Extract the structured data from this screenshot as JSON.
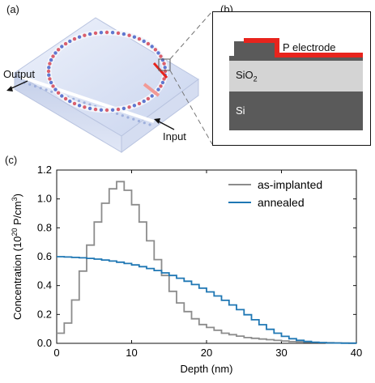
{
  "panels": {
    "a": {
      "label": "(a)",
      "output_label": "Output",
      "input_label": "Input"
    },
    "b": {
      "label": "(b)",
      "electrode_label": "P electrode",
      "oxide_label": "SiO2",
      "oxide_base": "SiO",
      "oxide_sub": "2",
      "substrate_label": "Si"
    },
    "c": {
      "label": "(c)"
    }
  },
  "colors": {
    "as_implanted": "#8c8c8c",
    "annealed": "#1f77b4",
    "electrode": "#e8241d",
    "sio2": "#d4d4d4",
    "si": "#5a5a5a"
  },
  "chart_data": {
    "type": "line",
    "xlabel": "Depth (nm)",
    "ylabel_prefix": "Concentration (10",
    "ylabel_exp": "20",
    "ylabel_suffix": " P/cm",
    "ylabel_unit_exp": "3",
    "ylabel_close": ")",
    "xlim": [
      0,
      40
    ],
    "ylim": [
      0,
      1.2
    ],
    "xticks": [
      0,
      10,
      20,
      30,
      40
    ],
    "yticks": [
      0.0,
      0.2,
      0.4,
      0.6,
      0.8,
      1.0,
      1.2
    ],
    "ytick_labels": [
      "0.0",
      "0.2",
      "0.4",
      "0.6",
      "0.8",
      "1.0",
      "1.2"
    ],
    "legend_position": "top-right",
    "series": [
      {
        "name": "as-implanted",
        "style": "step",
        "x": [
          0,
          1,
          2,
          3,
          4,
          5,
          6,
          7,
          8,
          9,
          10,
          11,
          12,
          13,
          14,
          15,
          16,
          17,
          18,
          19,
          20,
          21,
          22,
          23,
          24,
          25,
          26,
          27,
          28,
          29,
          30,
          31,
          32,
          33,
          34,
          35,
          36,
          37,
          38,
          39,
          40
        ],
        "y": [
          0.07,
          0.14,
          0.3,
          0.5,
          0.68,
          0.84,
          0.97,
          1.07,
          1.12,
          1.06,
          0.96,
          0.84,
          0.71,
          0.58,
          0.47,
          0.36,
          0.28,
          0.22,
          0.17,
          0.13,
          0.11,
          0.09,
          0.07,
          0.06,
          0.05,
          0.04,
          0.035,
          0.03,
          0.025,
          0.02,
          0.016,
          0.012,
          0.01,
          0.008,
          0.006,
          0.005,
          0.004,
          0.003,
          0.002,
          0.001,
          0.001
        ]
      },
      {
        "name": "annealed",
        "style": "step",
        "x": [
          0,
          1,
          2,
          3,
          4,
          5,
          6,
          7,
          8,
          9,
          10,
          11,
          12,
          13,
          14,
          15,
          16,
          17,
          18,
          19,
          20,
          21,
          22,
          23,
          24,
          25,
          26,
          27,
          28,
          29,
          30,
          31,
          32,
          33,
          34,
          35,
          36,
          37,
          38,
          39,
          40
        ],
        "y": [
          0.6,
          0.598,
          0.595,
          0.592,
          0.588,
          0.583,
          0.577,
          0.57,
          0.562,
          0.553,
          0.543,
          0.531,
          0.518,
          0.504,
          0.488,
          0.47,
          0.451,
          0.43,
          0.407,
          0.382,
          0.356,
          0.328,
          0.298,
          0.266,
          0.233,
          0.198,
          0.163,
          0.129,
          0.097,
          0.07,
          0.048,
          0.032,
          0.021,
          0.013,
          0.008,
          0.005,
          0.003,
          0.002,
          0.001,
          0.001,
          0.0005
        ]
      }
    ]
  }
}
